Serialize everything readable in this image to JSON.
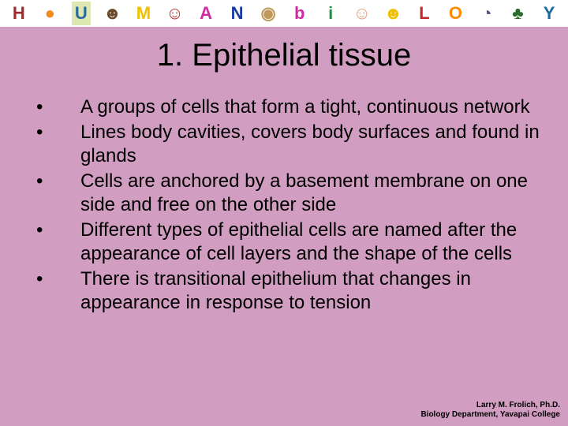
{
  "banner": {
    "letters": [
      {
        "char": "H",
        "color": "#a02a2a",
        "bg": "#ffffff"
      },
      {
        "char": "●",
        "color": "#f58a20",
        "bg": "#ffffff"
      },
      {
        "char": "U",
        "color": "#2a6aa0",
        "bg": "#dde7b0"
      },
      {
        "char": "☻",
        "color": "#6a4a2a",
        "bg": "#ffffff"
      },
      {
        "char": "M",
        "color": "#f0c000",
        "bg": "#ffffff"
      },
      {
        "char": "☺",
        "color": "#c02a2a",
        "bg": "#ffffff"
      },
      {
        "char": "A",
        "color": "#d02aa0",
        "bg": "#ffffff"
      },
      {
        "char": "N",
        "color": "#1a3aa0",
        "bg": "#ffffff"
      },
      {
        "char": "◉",
        "color": "#c09a5a",
        "bg": "#ffffff"
      },
      {
        "char": "b",
        "color": "#d02aa0",
        "bg": "#ffffff"
      },
      {
        "char": "i",
        "color": "#2a8a4a",
        "bg": "#ffffff"
      },
      {
        "char": "☺",
        "color": "#e0a080",
        "bg": "#ffffff"
      },
      {
        "char": "☻",
        "color": "#f0c000",
        "bg": "#ffffff"
      },
      {
        "char": "L",
        "color": "#c02a2a",
        "bg": "#ffffff"
      },
      {
        "char": "O",
        "color": "#ff8a00",
        "bg": "#ffffff"
      },
      {
        "char": "◔",
        "color": "#6a4a8a",
        "bg": "#ffffff"
      },
      {
        "char": "♣",
        "color": "#2a6a2a",
        "bg": "#ffffff"
      },
      {
        "char": "Y",
        "color": "#1a6aa0",
        "bg": "#ffffff"
      }
    ]
  },
  "slide": {
    "title": "1.  Epithelial tissue",
    "title_fontsize": 40,
    "title_color": "#000000",
    "background_color": "#d19ec2",
    "bullets": [
      "A groups of cells that form a tight, continuous network",
      "Lines body cavities, covers body surfaces and found in glands",
      "Cells are anchored by a basement membrane on one side and free on the other side",
      "Different types of epithelial cells are named after the appearance of cell layers and the shape of the cells",
      "There is transitional epithelium that changes in appearance in response to tension"
    ],
    "bullet_fontsize": 24,
    "bullet_color": "#000000",
    "bullet_marker": "•"
  },
  "footer": {
    "line1": "Larry M. Frolich, Ph.D.",
    "line2": "Biology Department, Yavapai College",
    "fontsize": 10,
    "color": "#000000"
  }
}
